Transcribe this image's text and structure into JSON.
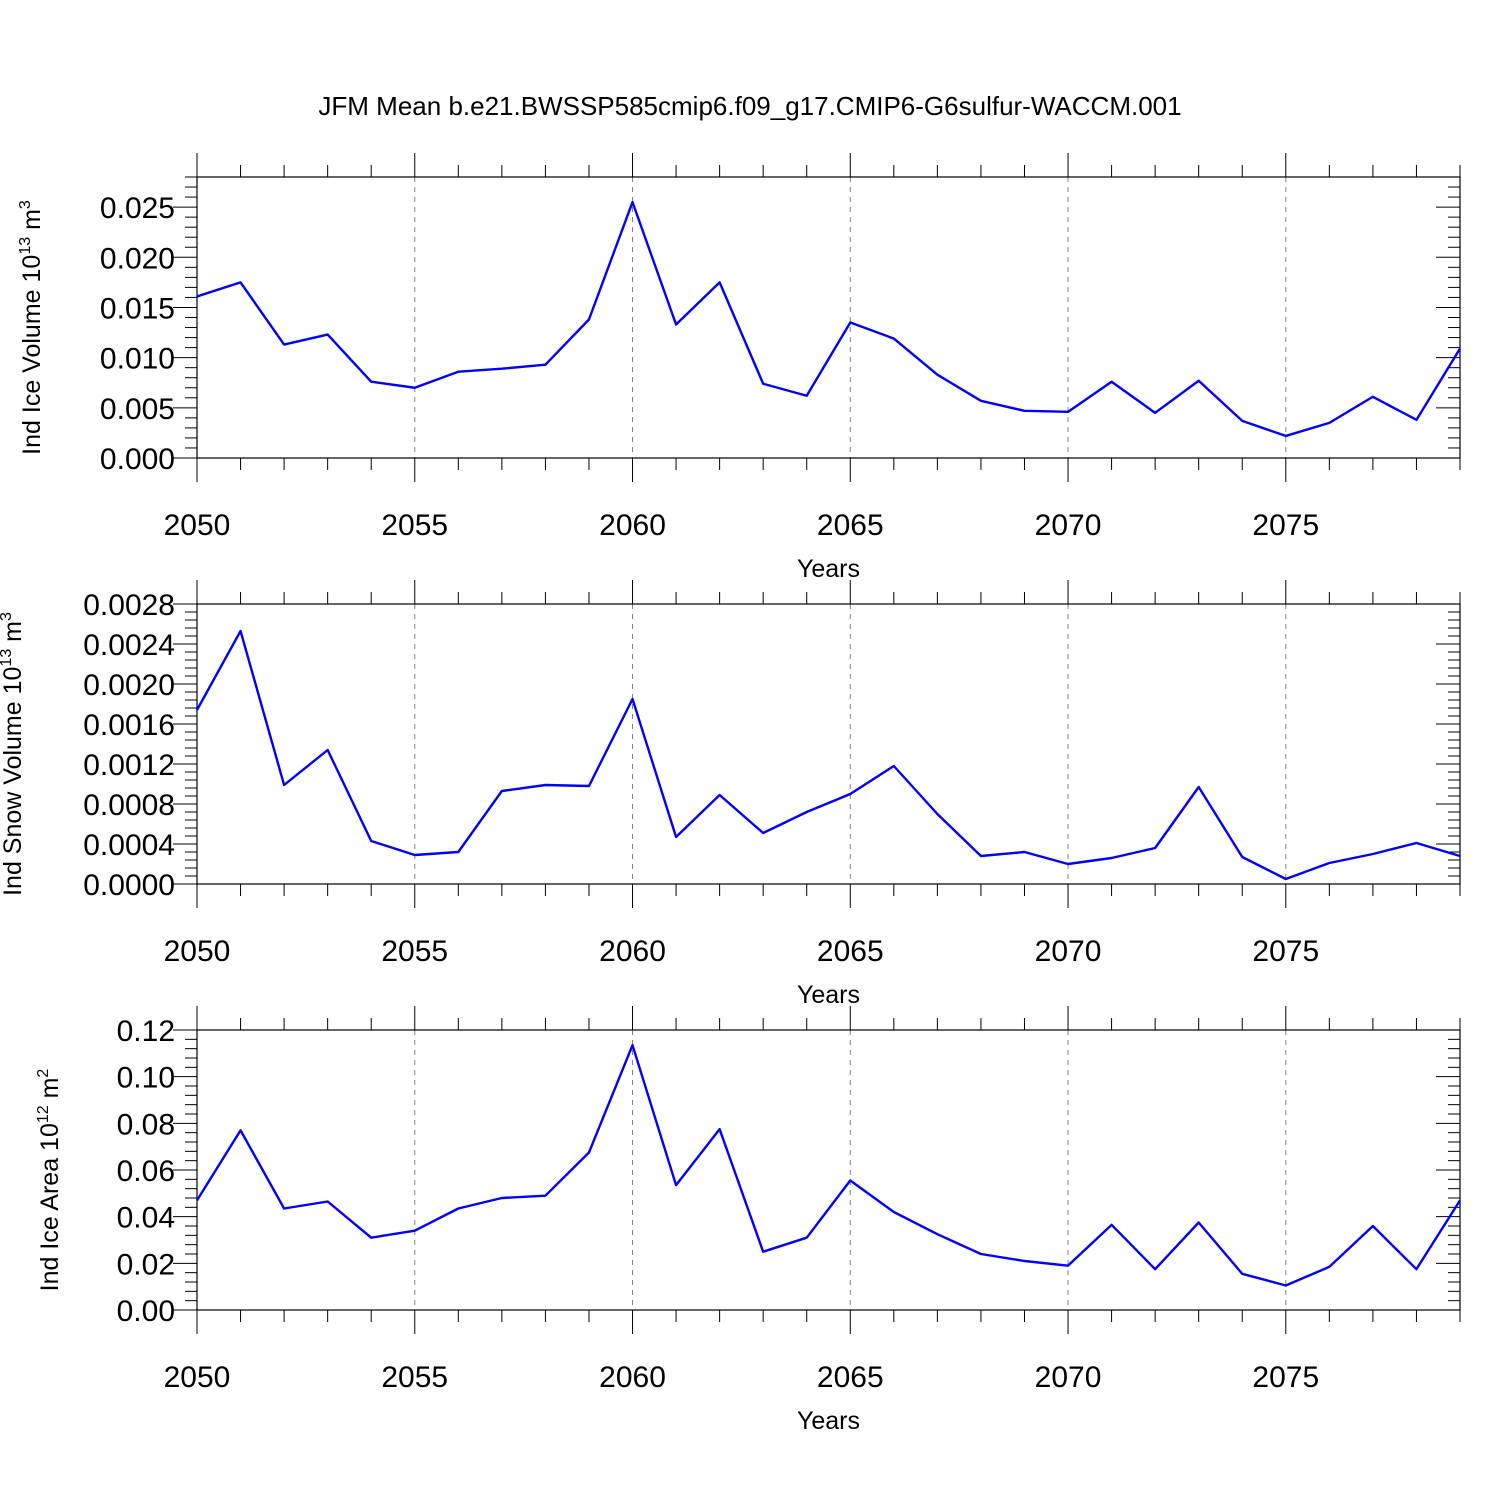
{
  "figure_title": "JFM Mean b.e21.BWSSP585cmip6.f09_g17.CMIP6-G6sulfur-WACCM.001",
  "line_color": "#0000ff",
  "chart_data": [
    {
      "type": "line",
      "title": "",
      "xlabel": "Years",
      "ylabel": "Ind Ice Volume 10",
      "ylabel_exp": "13",
      "ylabel_unit": " m",
      "ylabel_unit_exp": "3",
      "xlim": [
        2050,
        2079
      ],
      "ylim": [
        0.0,
        0.028
      ],
      "grid": "vertical dashed at major x ticks",
      "xticks": [
        2050,
        2055,
        2060,
        2065,
        2070,
        2075
      ],
      "xtick_labels": [
        "2050",
        "2055",
        "2060",
        "2065",
        "2070",
        "2075"
      ],
      "yticks": [
        0.0,
        0.005,
        0.01,
        0.015,
        0.02,
        0.025
      ],
      "ytick_labels": [
        "0.000",
        "0.005",
        "0.010",
        "0.015",
        "0.020",
        "0.025"
      ],
      "x": [
        2050,
        2051,
        2052,
        2053,
        2054,
        2055,
        2056,
        2057,
        2058,
        2059,
        2060,
        2061,
        2062,
        2063,
        2064,
        2065,
        2066,
        2067,
        2068,
        2069,
        2070,
        2071,
        2072,
        2073,
        2074,
        2075,
        2076,
        2077,
        2078,
        2079
      ],
      "y": [
        0.0161,
        0.0175,
        0.0113,
        0.0123,
        0.0076,
        0.007,
        0.0086,
        0.0089,
        0.0093,
        0.0138,
        0.0255,
        0.0133,
        0.0175,
        0.0074,
        0.0062,
        0.0135,
        0.0119,
        0.0083,
        0.0057,
        0.0047,
        0.0046,
        0.0076,
        0.0045,
        0.0077,
        0.0037,
        0.0022,
        0.0035,
        0.0061,
        0.0038,
        0.0109
      ]
    },
    {
      "type": "line",
      "title": "",
      "xlabel": "Years",
      "ylabel": "Ind Snow Volume 10",
      "ylabel_exp": "13",
      "ylabel_unit": " m",
      "ylabel_unit_exp": "3",
      "xlim": [
        2050,
        2079
      ],
      "ylim": [
        0.0,
        0.0028
      ],
      "grid": "vertical dashed at major x ticks",
      "xticks": [
        2050,
        2055,
        2060,
        2065,
        2070,
        2075
      ],
      "xtick_labels": [
        "2050",
        "2055",
        "2060",
        "2065",
        "2070",
        "2075"
      ],
      "yticks": [
        0.0,
        0.0004,
        0.0008,
        0.0012,
        0.0016,
        0.002,
        0.0024,
        0.0028
      ],
      "ytick_labels": [
        "0.0000",
        "0.0004",
        "0.0008",
        "0.0012",
        "0.0016",
        "0.0020",
        "0.0024",
        "0.0028"
      ],
      "x": [
        2050,
        2051,
        2052,
        2053,
        2054,
        2055,
        2056,
        2057,
        2058,
        2059,
        2060,
        2061,
        2062,
        2063,
        2064,
        2065,
        2066,
        2067,
        2068,
        2069,
        2070,
        2071,
        2072,
        2073,
        2074,
        2075,
        2076,
        2077,
        2078,
        2079
      ],
      "y": [
        0.00174,
        0.00253,
        0.00099,
        0.00134,
        0.00043,
        0.00029,
        0.00032,
        0.00093,
        0.00099,
        0.00098,
        0.00185,
        0.00047,
        0.00089,
        0.00051,
        0.00072,
        0.0009,
        0.00118,
        0.0007,
        0.00028,
        0.00032,
        0.0002,
        0.00026,
        0.00036,
        0.00097,
        0.00027,
        5e-05,
        0.00021,
        0.0003,
        0.00041,
        0.00028
      ]
    },
    {
      "type": "line",
      "title": "",
      "xlabel": "Years",
      "ylabel": "Ind Ice Area 10",
      "ylabel_exp": "12",
      "ylabel_unit": " m",
      "ylabel_unit_exp": "2",
      "xlim": [
        2050,
        2079
      ],
      "ylim": [
        0.0,
        0.12
      ],
      "grid": "vertical dashed at major x ticks",
      "xticks": [
        2050,
        2055,
        2060,
        2065,
        2070,
        2075
      ],
      "xtick_labels": [
        "2050",
        "2055",
        "2060",
        "2065",
        "2070",
        "2075"
      ],
      "yticks": [
        0.0,
        0.02,
        0.04,
        0.06,
        0.08,
        0.1,
        0.12
      ],
      "ytick_labels": [
        "0.00",
        "0.02",
        "0.04",
        "0.06",
        "0.08",
        "0.10",
        "0.12"
      ],
      "x": [
        2050,
        2051,
        2052,
        2053,
        2054,
        2055,
        2056,
        2057,
        2058,
        2059,
        2060,
        2061,
        2062,
        2063,
        2064,
        2065,
        2066,
        2067,
        2068,
        2069,
        2070,
        2071,
        2072,
        2073,
        2074,
        2075,
        2076,
        2077,
        2078,
        2079
      ],
      "y": [
        0.047,
        0.077,
        0.0435,
        0.0465,
        0.031,
        0.034,
        0.0435,
        0.048,
        0.049,
        0.0675,
        0.1135,
        0.0535,
        0.0775,
        0.025,
        0.031,
        0.0555,
        0.042,
        0.0325,
        0.024,
        0.021,
        0.019,
        0.0365,
        0.0175,
        0.0375,
        0.0155,
        0.0105,
        0.0185,
        0.036,
        0.0175,
        0.047
      ]
    }
  ]
}
